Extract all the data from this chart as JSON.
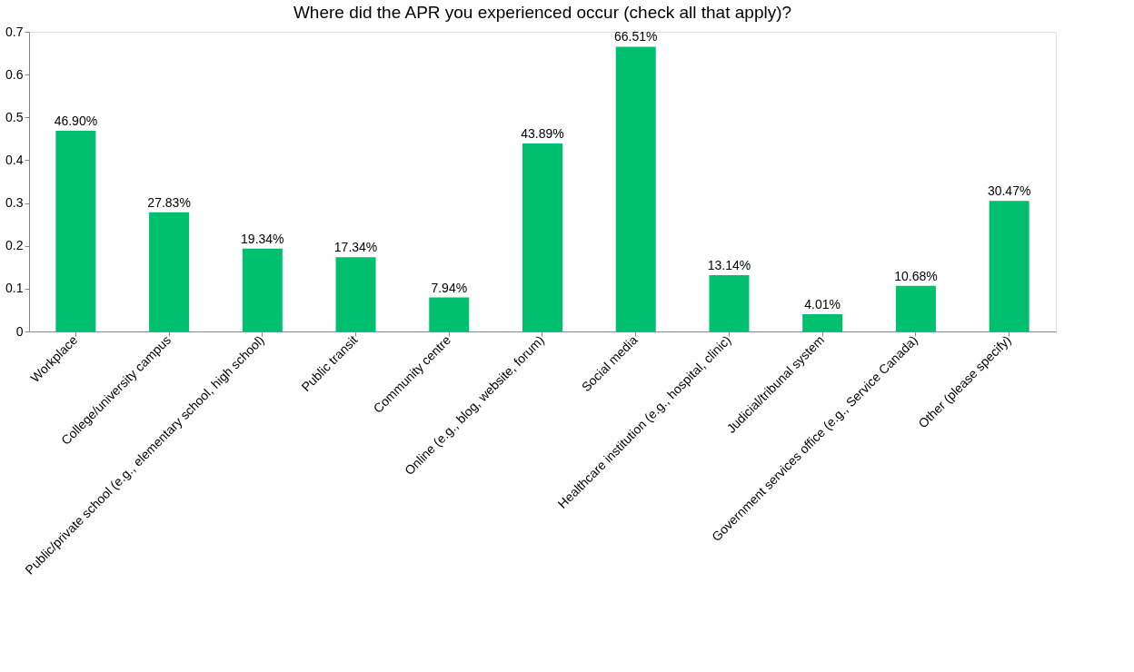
{
  "chart_data": {
    "type": "bar",
    "title": "Where did the APR you experienced occur (check all that apply)?",
    "categories": [
      "Workplace",
      "College/university campus",
      "Public/private school (e.g., elementary school, high school)",
      "Public transit",
      "Community centre",
      "Online (e.g., blog, website, forum)",
      "Social media",
      "Healthcare institution (e.g., hospital, clinic)",
      "Judicial/tribunal system",
      "Government services office (e.g., Service Canada)",
      "Other (please specify)"
    ],
    "values": [
      0.469,
      0.2783,
      0.1934,
      0.1734,
      0.0794,
      0.4389,
      0.6651,
      0.1314,
      0.0401,
      0.1068,
      0.3047
    ],
    "value_labels": [
      "46.90%",
      "27.83%",
      "19.34%",
      "17.34%",
      "7.94%",
      "43.89%",
      "66.51%",
      "13.14%",
      "4.01%",
      "10.68%",
      "30.47%"
    ],
    "color": "#00bf6f",
    "ylim": [
      0,
      0.7
    ],
    "yticks": [
      0,
      0.1,
      0.2,
      0.3,
      0.4,
      0.5,
      0.6,
      0.7
    ],
    "grid": false
  }
}
